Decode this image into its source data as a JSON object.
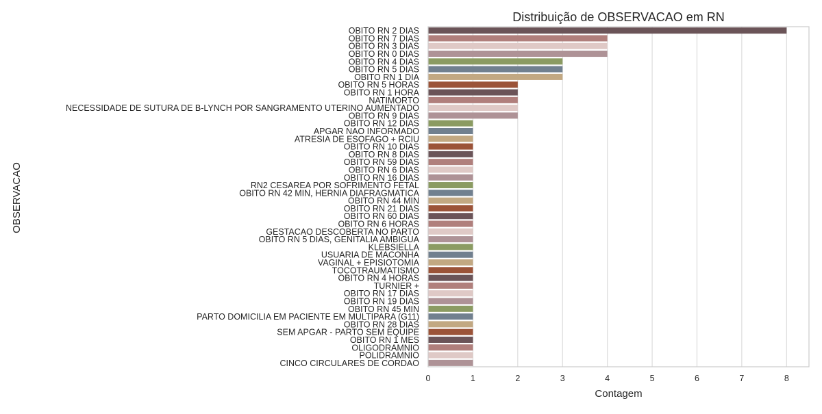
{
  "chart_data": {
    "type": "bar",
    "orientation": "horizontal",
    "title": "Distribuição de OBSERVACAO em RN",
    "xlabel": "Contagem",
    "ylabel": "OBSERVACAO",
    "xlim": [
      0,
      8.5
    ],
    "x_ticks": [
      0,
      1,
      2,
      3,
      4,
      5,
      6,
      7,
      8
    ],
    "grid": "vertical",
    "palette": [
      "#6b5458",
      "#b07f7c",
      "#dfc9c6",
      "#ae9296",
      "#8b9b62",
      "#71808f",
      "#c2a882",
      "#9b5338"
    ],
    "categories": [
      "OBITO RN 2 DIAS",
      "OBITO RN 7 DIAS",
      "OBITO RN 3 DIAS",
      "OBITO RN 0 DIAS",
      "OBITO RN 4 DIAS",
      "OBITO RN 5 DIAS",
      "OBITO RN 1 DIA",
      "OBITO RN 5 HORAS",
      "OBITO RN 1 HORA",
      "NATIMORTO",
      "NECESSIDADE DE SUTURA DE B-LYNCH POR SANGRAMENTO UTERINO AUMENTADO",
      "OBITO RN 9 DIAS",
      "OBITO RN 12 DIAS",
      "APGAR NAO INFORMADO",
      "ATRESIA DE ESOFAGO + RCIU",
      "OBITO RN 10 DIAS",
      "OBITO RN 8 DIAS",
      "OBITO RN 59 DIAS",
      "OBITO RN 6 DIAS",
      "OBITO RN 16 DIAS",
      "RN2 CESAREA POR SOFRIMENTO FETAL",
      "OBITO RN 42 MIN, HERNIA DIAFRAGMATICA",
      "OBITO RN 44 MIN",
      "OBITO RN 21 DIAS",
      "OBITO RN 60 DIAS",
      "OBITO RN 6 HORAS",
      "GESTACAO DESCOBERTA NO PARTO",
      "OBITO RN 5 DIAS, GENITALIA AMBIGUA",
      "KLEBSIELLA",
      "USUARIA DE MACONHA",
      "VAGINAL + EPISIOTOMIA",
      "TOCOTRAUMATISMO",
      "OBITO RN 4 HORAS",
      "TURNIER +",
      "OBITO RN 17 DIAS",
      "OBITO RN 19 DIAS",
      "OBITO RN 45 MIN",
      "PARTO DOMICILIA EM PACIENTE EM MULTIPARA (G11)",
      "OBITO RN 28 DIAS",
      "SEM APGAR - PARTO SEM EQUIPE",
      "OBITO RN 1 MES",
      "OLIGODRAMNIO",
      "POLIDRAMNIO",
      "CINCO CIRCULARES DE CORDAO"
    ],
    "values": [
      8,
      4,
      4,
      4,
      3,
      3,
      3,
      2,
      2,
      2,
      2,
      2,
      1,
      1,
      1,
      1,
      1,
      1,
      1,
      1,
      1,
      1,
      1,
      1,
      1,
      1,
      1,
      1,
      1,
      1,
      1,
      1,
      1,
      1,
      1,
      1,
      1,
      1,
      1,
      1,
      1,
      1,
      1,
      1
    ]
  }
}
